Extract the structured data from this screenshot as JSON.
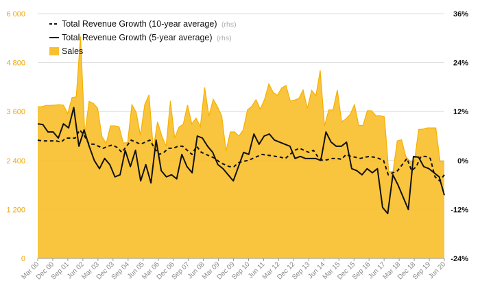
{
  "chart_data": {
    "type": "area",
    "title": "",
    "xlabel": "",
    "ylabel_left": "",
    "ylabel_right": "",
    "y_left": {
      "ticks": [
        "0",
        "1 200",
        "2 400",
        "3 600",
        "4 800",
        "6 000"
      ],
      "range": [
        0,
        6000
      ]
    },
    "y_right": {
      "ticks": [
        "-24%",
        "-12%",
        "0%",
        "12%",
        "24%",
        "36%"
      ],
      "range": [
        -24,
        36
      ]
    },
    "x_ticks": [
      "Mar 00",
      "Dec 00",
      "Sep 01",
      "Jun 02",
      "Mar 03",
      "Dec 03",
      "Sep 04",
      "Jun 05",
      "Mar 06",
      "Dec 06",
      "Sep 07",
      "Jun 08",
      "Mar 09",
      "Dec 09",
      "Sep 10",
      "Jun 11",
      "Mar 12",
      "Dec 12",
      "Sep 13",
      "Jun 14",
      "Mar 15",
      "Dec 15",
      "Sep 16",
      "Jun 17",
      "Mar 18",
      "Dec 18",
      "Sep 19",
      "Jun 20"
    ],
    "legend_position": "top-left",
    "legend": [
      {
        "label": "Total Revenue Growth (10-year average)",
        "suffix": "(rhs)",
        "style": "dashed"
      },
      {
        "label": "Total Revenue Growth (5-year average)",
        "suffix": "(rhs)",
        "style": "solid"
      },
      {
        "label": "Sales",
        "suffix": "",
        "style": "area"
      }
    ],
    "colors": {
      "sales": "#f9bf2e",
      "sales_line": "#f5b000",
      "lines": "#111111",
      "axis_left": "#f0a500"
    },
    "series": [
      {
        "name": "Sales",
        "axis": "left",
        "values": [
          3720,
          3720,
          3750,
          3750,
          3760,
          3770,
          3760,
          3550,
          3940,
          3960,
          5440,
          3050,
          3850,
          3800,
          3680,
          2990,
          2820,
          3250,
          3250,
          3230,
          2830,
          2840,
          3770,
          3580,
          3020,
          3770,
          4010,
          2690,
          3350,
          3000,
          2750,
          3860,
          2950,
          3220,
          3290,
          3760,
          3300,
          3440,
          3230,
          4190,
          3490,
          3900,
          3720,
          3490,
          2630,
          3100,
          3100,
          3000,
          3150,
          3640,
          3730,
          3890,
          3660,
          3900,
          4280,
          4070,
          4000,
          4180,
          4240,
          3860,
          3880,
          3920,
          4130,
          3680,
          4120,
          3990,
          4610,
          3250,
          3640,
          3640,
          4130,
          3350,
          3420,
          3530,
          3770,
          3260,
          3260,
          3620,
          3620,
          3500,
          3500,
          3470,
          2130,
          2130,
          2880,
          2910,
          2500,
          2380,
          2370,
          3160,
          3170,
          3200,
          3200,
          3200,
          2380,
          2380
        ],
        "x_start": "Mar 00",
        "x_step": "quarter"
      },
      {
        "name": "Total Revenue Growth (10-year average)",
        "axis": "right",
        "values": [
          5,
          4.8,
          4.8,
          4.8,
          4.8,
          4.5,
          5.5,
          5.5,
          5.5,
          7.5,
          6,
          4,
          4,
          3.5,
          3,
          3.5,
          3.8,
          3.2,
          2,
          3.5,
          5,
          4.5,
          4,
          4.5,
          5,
          3,
          1.5,
          2,
          3,
          3,
          3.5,
          3.5,
          2.5,
          1.5,
          3.5,
          2,
          1.5,
          1,
          0.5,
          -0.5,
          -1,
          -1.5,
          -1.5,
          -0.5,
          -0.2,
          0,
          0.5,
          1,
          1.5,
          1.3,
          1.2,
          1,
          0.8,
          0.5,
          1.5,
          2.5,
          3,
          2.5,
          2,
          2.5,
          0.8,
          0,
          0.2,
          0.5,
          0.5,
          0.3,
          1.5,
          1,
          0.8,
          0.5,
          0.8,
          1,
          0.8,
          0.5,
          0,
          -3.5,
          -3,
          -2.5,
          -1,
          0.5,
          -2.5,
          -1.5,
          1,
          1,
          0.5,
          -4,
          -5,
          -3.5
        ],
        "x_start": "Mar 00",
        "x_step": "quarter"
      },
      {
        "name": "Total Revenue Growth (5-year average)",
        "axis": "right",
        "values": [
          9,
          8.8,
          7,
          7,
          5.5,
          9,
          8,
          13,
          3.5,
          7.5,
          3.5,
          0,
          -2,
          0.5,
          -1,
          -4,
          -3.5,
          2.5,
          -1.5,
          2.5,
          -5,
          -1,
          -5.5,
          5,
          -2.5,
          -4,
          -3.5,
          -4.5,
          1.5,
          -1.5,
          -3,
          6,
          5.5,
          3.5,
          2,
          -1,
          -2,
          -3.5,
          -5,
          -1.5,
          2,
          1.5,
          6.5,
          4,
          6,
          6.5,
          5,
          4.5,
          4,
          3.5,
          0.5,
          1,
          0.5,
          0.5,
          0.5,
          0,
          7,
          4.5,
          3.5,
          3.5,
          4.5,
          -2,
          -2.5,
          -3.5,
          -2,
          -3,
          -2,
          -11.5,
          -13,
          -3.5,
          -6,
          -9,
          -12,
          1,
          0.8,
          -1.5,
          -2,
          -3,
          -4,
          -8.5
        ],
        "x_start": "Mar 00",
        "x_step": "quarter"
      }
    ]
  }
}
